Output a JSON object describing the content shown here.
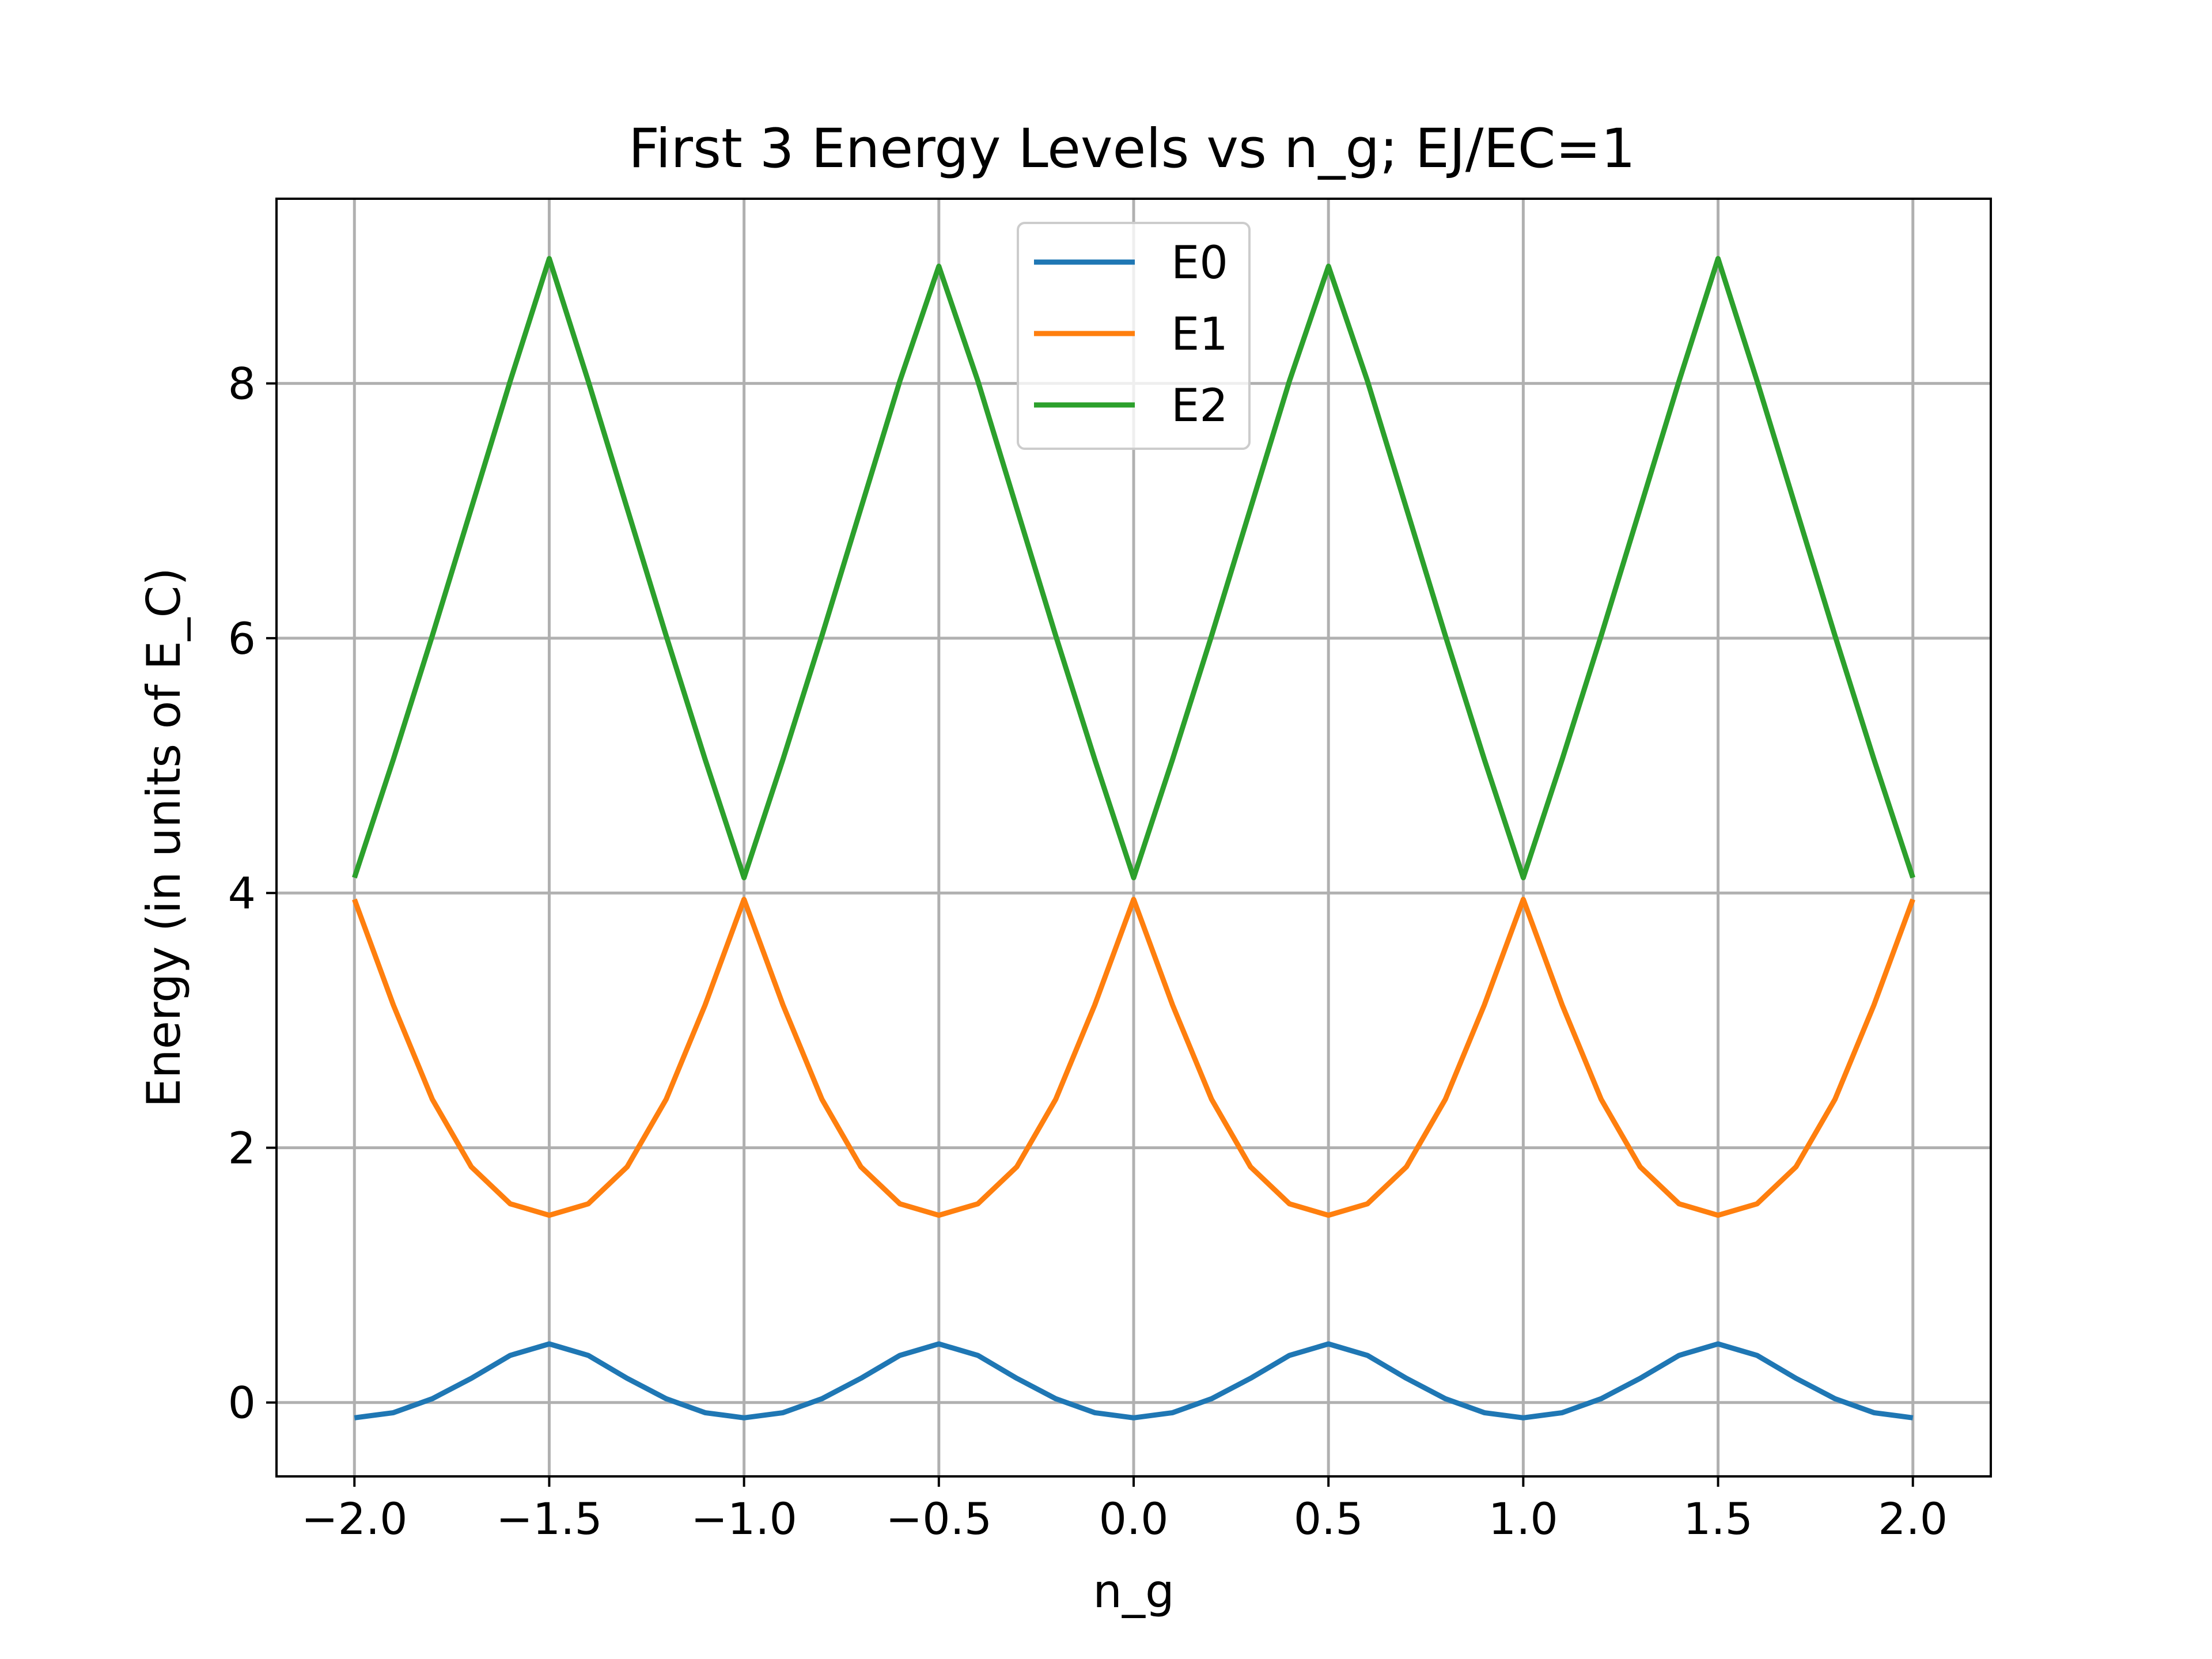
{
  "chart_data": {
    "type": "line",
    "title": "First 3 Energy Levels vs n_g; EJ/EC=1",
    "xlabel": "n_g",
    "ylabel": "Energy (in units of E_C)",
    "xlim": [
      -2.2,
      2.2
    ],
    "ylim": [
      -0.58,
      9.45
    ],
    "grid": true,
    "legend_position": "upper-center",
    "x_ticks": [
      -2.0,
      -1.5,
      -1.0,
      -0.5,
      0.0,
      0.5,
      1.0,
      1.5,
      2.0
    ],
    "x_tick_labels": [
      "−2.0",
      "−1.5",
      "−1.0",
      "−0.5",
      "0.0",
      "0.5",
      "1.0",
      "1.5",
      "2.0"
    ],
    "y_ticks": [
      0,
      2,
      4,
      6,
      8
    ],
    "y_tick_labels": [
      "0",
      "2",
      "4",
      "6",
      "8"
    ],
    "x": [
      -2.0,
      -1.9,
      -1.8,
      -1.7,
      -1.6,
      -1.5,
      -1.4,
      -1.3,
      -1.2,
      -1.1,
      -1.0,
      -0.9,
      -0.8,
      -0.7,
      -0.6,
      -0.5,
      -0.4,
      -0.3,
      -0.2,
      -0.1,
      0.0,
      0.1,
      0.2,
      0.3,
      0.4,
      0.5,
      0.6,
      0.7,
      0.8,
      0.9,
      1.0,
      1.1,
      1.2,
      1.3,
      1.4,
      1.5,
      1.6,
      1.7,
      1.8,
      1.9,
      2.0
    ],
    "series": [
      {
        "name": "E0",
        "color": "#1f77b4",
        "values": [
          -0.12,
          -0.08,
          0.03,
          0.19,
          0.37,
          0.46,
          0.37,
          0.19,
          0.03,
          -0.08,
          -0.12,
          -0.08,
          0.03,
          0.19,
          0.37,
          0.46,
          0.37,
          0.19,
          0.03,
          -0.08,
          -0.12,
          -0.08,
          0.03,
          0.19,
          0.37,
          0.46,
          0.37,
          0.19,
          0.03,
          -0.08,
          -0.12,
          -0.08,
          0.03,
          0.19,
          0.37,
          0.46,
          0.37,
          0.19,
          0.03,
          -0.08,
          -0.12
        ]
      },
      {
        "name": "E1",
        "color": "#ff7f0e",
        "values": [
          3.95,
          3.12,
          2.38,
          1.85,
          1.56,
          1.47,
          1.56,
          1.85,
          2.38,
          3.12,
          3.95,
          3.12,
          2.38,
          1.85,
          1.56,
          1.47,
          1.56,
          1.85,
          2.38,
          3.12,
          3.95,
          3.12,
          2.38,
          1.85,
          1.56,
          1.47,
          1.56,
          1.85,
          2.38,
          3.12,
          3.95,
          3.12,
          2.38,
          1.85,
          1.56,
          1.47,
          1.56,
          1.85,
          2.38,
          3.12,
          3.95
        ]
      },
      {
        "name": "E2",
        "color": "#2ca02c",
        "values": [
          4.12,
          5.05,
          6.02,
          7.02,
          8.02,
          8.98,
          8.02,
          7.02,
          6.02,
          5.05,
          4.12,
          5.05,
          6.02,
          7.02,
          8.02,
          8.92,
          8.02,
          7.02,
          6.02,
          5.05,
          4.12,
          5.05,
          6.02,
          7.02,
          8.02,
          8.92,
          8.02,
          7.02,
          6.02,
          5.05,
          4.12,
          5.05,
          6.02,
          7.02,
          8.02,
          8.98,
          8.02,
          7.02,
          6.02,
          5.05,
          4.12
        ]
      }
    ]
  }
}
